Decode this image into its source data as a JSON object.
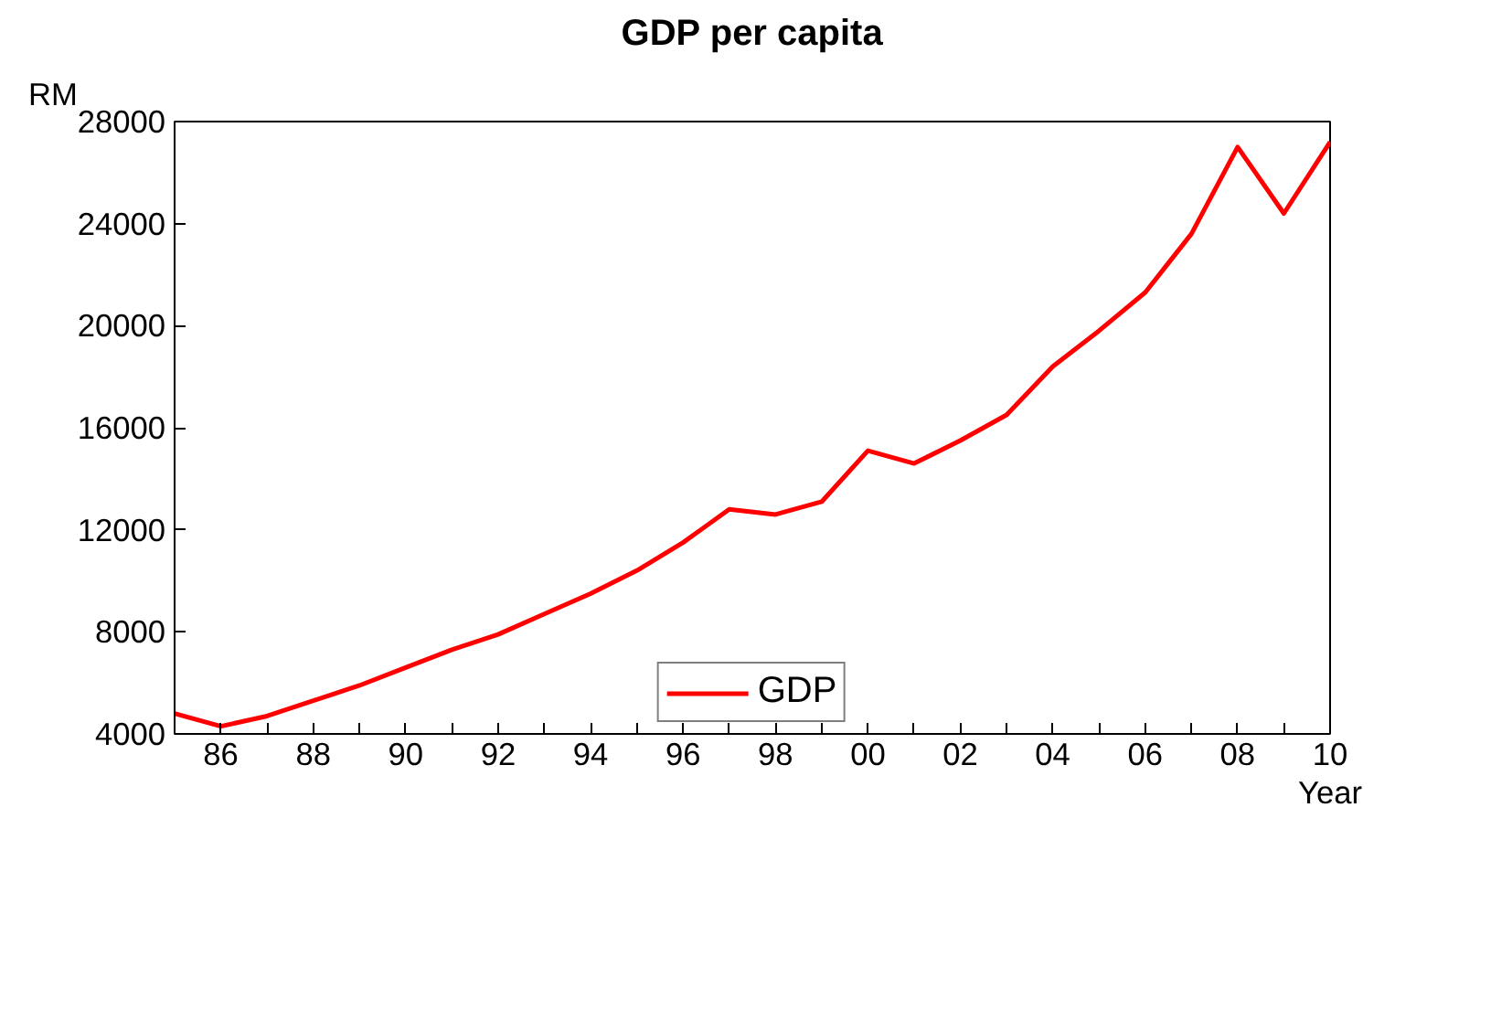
{
  "chart_data": {
    "type": "line",
    "title": "GDP per capita",
    "ylabel": "RM",
    "xlabel": "Year",
    "x": [
      1985,
      1986,
      1987,
      1988,
      1989,
      1990,
      1991,
      1992,
      1993,
      1994,
      1995,
      1996,
      1997,
      1998,
      1999,
      2000,
      2001,
      2002,
      2003,
      2004,
      2005,
      2006,
      2007,
      2008,
      2009,
      2010
    ],
    "series": [
      {
        "name": "GDP",
        "color": "#ff0000",
        "values": [
          4800,
          4300,
          4700,
          5300,
          5900,
          6600,
          7300,
          7900,
          8700,
          9500,
          10400,
          11500,
          12800,
          12600,
          13100,
          15100,
          14600,
          15500,
          16500,
          18400,
          19800,
          21300,
          23600,
          27000,
          24400,
          27200
        ]
      }
    ],
    "xlim": [
      1985,
      2010
    ],
    "ylim": [
      4000,
      28000
    ],
    "xticks": [
      {
        "value": 1985,
        "label": null
      },
      {
        "value": 1986,
        "label": "86"
      },
      {
        "value": 1987,
        "label": null
      },
      {
        "value": 1988,
        "label": "88"
      },
      {
        "value": 1989,
        "label": null
      },
      {
        "value": 1990,
        "label": "90"
      },
      {
        "value": 1991,
        "label": null
      },
      {
        "value": 1992,
        "label": "92"
      },
      {
        "value": 1993,
        "label": null
      },
      {
        "value": 1994,
        "label": "94"
      },
      {
        "value": 1995,
        "label": null
      },
      {
        "value": 1996,
        "label": "96"
      },
      {
        "value": 1997,
        "label": null
      },
      {
        "value": 1998,
        "label": "98"
      },
      {
        "value": 1999,
        "label": null
      },
      {
        "value": 2000,
        "label": "00"
      },
      {
        "value": 2001,
        "label": null
      },
      {
        "value": 2002,
        "label": "02"
      },
      {
        "value": 2003,
        "label": null
      },
      {
        "value": 2004,
        "label": "04"
      },
      {
        "value": 2005,
        "label": null
      },
      {
        "value": 2006,
        "label": "06"
      },
      {
        "value": 2007,
        "label": null
      },
      {
        "value": 2008,
        "label": "08"
      },
      {
        "value": 2009,
        "label": null
      },
      {
        "value": 2010,
        "label": "10"
      }
    ],
    "yticks": [
      4000,
      8000,
      12000,
      16000,
      20000,
      24000,
      28000
    ],
    "grid": false,
    "legend": "bottom",
    "marker": "none",
    "line_style": "solid"
  }
}
